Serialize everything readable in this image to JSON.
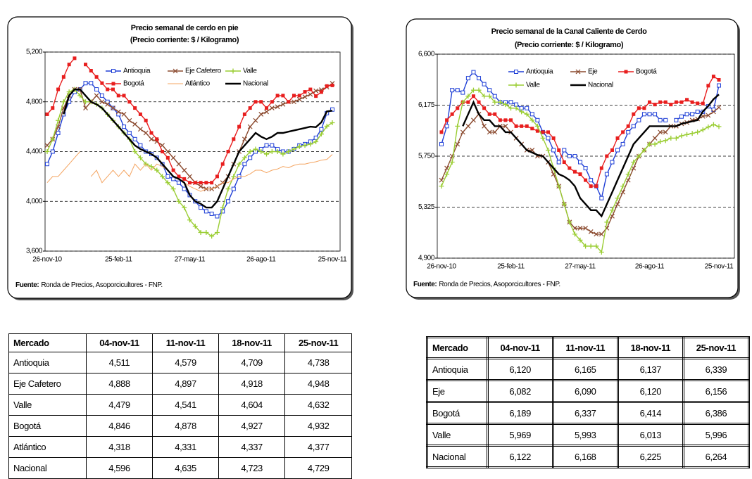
{
  "chart_data": [
    {
      "type": "line",
      "title": "Precio semanal de cerdo en pie",
      "subtitle": "(Precio corriente: $ / Kilogramo)",
      "categories": [
        "26-nov-10",
        null,
        null,
        null,
        null,
        null,
        null,
        null,
        null,
        null,
        null,
        null,
        null,
        "25-feb-11",
        null,
        null,
        null,
        null,
        null,
        null,
        null,
        null,
        null,
        null,
        null,
        null,
        "27-may-11",
        null,
        null,
        null,
        null,
        null,
        null,
        null,
        null,
        null,
        null,
        null,
        null,
        "26-ago-11",
        null,
        null,
        null,
        null,
        null,
        null,
        null,
        null,
        null,
        null,
        null,
        null,
        "25-nov-11"
      ],
      "series": [
        {
          "name": "Antioquia",
          "color": "#1f3fd6",
          "marker": "square-open",
          "values": [
            4300,
            4400,
            4550,
            4700,
            4800,
            4880,
            4900,
            4950,
            4950,
            4900,
            4850,
            4800,
            4750,
            4700,
            4600,
            4550,
            4500,
            4450,
            4400,
            4380,
            4350,
            4300,
            4200,
            4180,
            4150,
            4100,
            4050,
            4000,
            3950,
            3920,
            3900,
            3880,
            3920,
            4000,
            4100,
            4200,
            4300,
            4350,
            4400,
            4420,
            4450,
            4450,
            4420,
            4400,
            4400,
            4420,
            4450,
            4460,
            4480,
            4511,
            4579,
            4709,
            4738
          ]
        },
        {
          "name": "Eje Cafetero",
          "color": "#8b4a2f",
          "marker": "x",
          "values": [
            4450,
            4500,
            4600,
            4750,
            4850,
            4900,
            4900,
            4750,
            4800,
            4850,
            4800,
            4780,
            4750,
            4720,
            4700,
            4650,
            4620,
            4580,
            4550,
            4500,
            4480,
            4450,
            4400,
            4350,
            4300,
            4250,
            4200,
            4150,
            4120,
            4100,
            4100,
            4120,
            4150,
            4200,
            4300,
            4400,
            4500,
            4600,
            4650,
            4700,
            4720,
            4750,
            4760,
            4780,
            4800,
            4800,
            4820,
            4840,
            4860,
            4888,
            4897,
            4918,
            4948
          ]
        },
        {
          "name": "Valle",
          "color": "#9acd32",
          "marker": "plus",
          "values": [
            4400,
            4500,
            4650,
            4800,
            4880,
            4900,
            4850,
            4800,
            4800,
            4780,
            4750,
            4700,
            4650,
            4600,
            4550,
            4500,
            4400,
            4350,
            4300,
            4280,
            4250,
            4200,
            4150,
            4100,
            4000,
            3950,
            3850,
            3800,
            3750,
            3750,
            3720,
            3750,
            3950,
            4100,
            4200,
            4300,
            4350,
            4400,
            4420,
            4400,
            4380,
            4400,
            4400,
            4380,
            4400,
            4420,
            4440,
            4450,
            4460,
            4479,
            4541,
            4604,
            4632
          ]
        },
        {
          "name": "Bogotá",
          "color": "#e81e1e",
          "marker": "square",
          "values": [
            4700,
            4750,
            4900,
            5000,
            5100,
            5150,
            null,
            5100,
            5050,
            5000,
            4950,
            4900,
            4900,
            4850,
            4850,
            4800,
            4750,
            4700,
            4650,
            4550,
            4500,
            4400,
            4350,
            4250,
            4200,
            4180,
            4150,
            4150,
            4150,
            4150,
            4150,
            4200,
            4300,
            4400,
            4500,
            4600,
            4700,
            4750,
            4800,
            4800,
            4750,
            4800,
            4850,
            4850,
            4800,
            4850,
            4850,
            4880,
            4900,
            4846,
            4878,
            4927,
            4932
          ]
        },
        {
          "name": "Atlántico",
          "color": "#f4a460",
          "marker": "none",
          "values": [
            4150,
            4200,
            4200,
            4250,
            4300,
            4350,
            4400,
            null,
            4200,
            4250,
            4150,
            4200,
            4250,
            4200,
            4250,
            4200,
            4300,
            4250,
            4300,
            4250,
            4300,
            4280,
            4250,
            4200,
            4180,
            4150,
            4120,
            4100,
            4080,
            4100,
            4100,
            4120,
            4150,
            4150,
            4180,
            4200,
            4200,
            4220,
            4250,
            4250,
            4230,
            4250,
            4260,
            4280,
            4270,
            4290,
            4300,
            4300,
            4310,
            4318,
            4331,
            4337,
            4377
          ]
        },
        {
          "name": "Nacional",
          "color": "#000000",
          "marker": "none",
          "values": [
            null,
            null,
            null,
            4700,
            4850,
            4900,
            4900,
            4850,
            4800,
            4780,
            4750,
            4700,
            4650,
            4600,
            4550,
            4500,
            4450,
            4420,
            4400,
            4380,
            4350,
            4300,
            4250,
            4200,
            4180,
            4150,
            4050,
            4000,
            3980,
            3950,
            3950,
            4000,
            4100,
            4200,
            4300,
            4400,
            4450,
            4500,
            4550,
            4520,
            4500,
            4520,
            4550,
            4550,
            4560,
            4570,
            4580,
            4590,
            4600,
            4596,
            4635,
            4723,
            4729
          ]
        }
      ],
      "ylim": [
        3600,
        5200
      ],
      "yticks": [
        {
          "value": 3600,
          "label": "3,600"
        },
        {
          "value": 4000,
          "label": "4,000"
        },
        {
          "value": 4400,
          "label": "4,400"
        },
        {
          "value": 4800,
          "label": "4,800"
        },
        {
          "value": 5200,
          "label": "5,200"
        }
      ],
      "grid": true,
      "legend": "top",
      "source_label": "Fuente:",
      "source": "Ronda de Precios, Asoporcicultores  - FNP."
    },
    {
      "type": "line",
      "title": "Precio semanal de la Canal Caliente de Cerdo",
      "subtitle": "(Precio corriente: $ / Kilogramo)",
      "categories": [
        "26-nov-10",
        null,
        null,
        null,
        null,
        null,
        null,
        null,
        null,
        null,
        null,
        null,
        null,
        "25-feb-11",
        null,
        null,
        null,
        null,
        null,
        null,
        null,
        null,
        null,
        null,
        null,
        null,
        "27-may-11",
        null,
        null,
        null,
        null,
        null,
        null,
        null,
        null,
        null,
        null,
        null,
        null,
        "26-ago-11",
        null,
        null,
        null,
        null,
        null,
        null,
        null,
        null,
        null,
        null,
        null,
        null,
        "25-nov-11"
      ],
      "series": [
        {
          "name": "Antioquia",
          "color": "#1f3fd6",
          "marker": "square-open",
          "values": [
            5850,
            6000,
            6300,
            6300,
            6280,
            6400,
            6450,
            6400,
            6350,
            6300,
            6250,
            6200,
            6200,
            6200,
            6180,
            6150,
            6150,
            6100,
            6050,
            5950,
            5900,
            5800,
            5700,
            5800,
            5750,
            5750,
            5700,
            5650,
            5550,
            5500,
            5400,
            5600,
            5700,
            5800,
            5850,
            5950,
            6000,
            6050,
            6100,
            6100,
            6100,
            6050,
            6050,
            null,
            6050,
            6080,
            6100,
            6100,
            6120,
            6120,
            6165,
            6137,
            6339
          ]
        },
        {
          "name": "Eje",
          "color": "#8b4a2f",
          "marker": "x",
          "values": [
            5550,
            5650,
            5750,
            5850,
            5950,
            6000,
            6050,
            6100,
            6000,
            5950,
            5950,
            6000,
            6000,
            5950,
            5900,
            5850,
            5800,
            5800,
            5750,
            5750,
            5700,
            5600,
            5500,
            5350,
            5200,
            5150,
            5150,
            5150,
            5120,
            5100,
            5100,
            5150,
            5250,
            5350,
            5450,
            5550,
            5650,
            5750,
            5800,
            5850,
            5900,
            5950,
            5950,
            6000,
            6000,
            6020,
            6030,
            6050,
            6060,
            6082,
            6090,
            6120,
            6156
          ]
        },
        {
          "name": "Bogotá",
          "color": "#e81e1e",
          "marker": "square",
          "values": [
            5950,
            6050,
            6100,
            6150,
            6200,
            6200,
            6250,
            6200,
            6150,
            6100,
            6100,
            6050,
            6050,
            6050,
            6000,
            6000,
            6000,
            5980,
            5960,
            5950,
            5950,
            5900,
            5800,
            5700,
            5650,
            5620,
            5600,
            5550,
            5500,
            5500,
            5650,
            5750,
            5800,
            5900,
            5950,
            6000,
            6100,
            6150,
            6150,
            6200,
            6180,
            6200,
            6200,
            6180,
            6200,
            6200,
            6220,
            6200,
            6190,
            6189,
            6337,
            6414,
            6386
          ]
        },
        {
          "name": "Valle",
          "color": "#9acd32",
          "marker": "plus",
          "values": [
            5500,
            5600,
            5700,
            6000,
            6200,
            6250,
            6300,
            6300,
            6250,
            6250,
            6200,
            6200,
            6180,
            6150,
            6150,
            6120,
            6100,
            6050,
            6000,
            5900,
            5800,
            5650,
            5500,
            5350,
            5200,
            5100,
            5050,
            5000,
            5000,
            5000,
            4950,
            5200,
            5300,
            5400,
            5500,
            5600,
            5700,
            5750,
            5800,
            5850,
            5850,
            5870,
            5880,
            5900,
            5900,
            5920,
            5930,
            5940,
            5950,
            5969,
            5993,
            6013,
            5996
          ]
        },
        {
          "name": "Nacional",
          "color": "#000000",
          "marker": "none",
          "values": [
            null,
            null,
            null,
            null,
            6000,
            6100,
            6200,
            6100,
            6050,
            6050,
            6000,
            6000,
            5950,
            5950,
            5900,
            5850,
            5800,
            5780,
            5760,
            5750,
            5700,
            5650,
            5600,
            5580,
            5550,
            5500,
            5400,
            5350,
            5300,
            5300,
            5250,
            5350,
            5450,
            5550,
            5650,
            5750,
            5850,
            5900,
            5950,
            6000,
            6000,
            6000,
            6000,
            6000,
            6000,
            6020,
            6030,
            6040,
            6050,
            6122,
            6168,
            6225,
            6264
          ]
        }
      ],
      "ylim": [
        4900,
        6600
      ],
      "yticks": [
        {
          "value": 4900,
          "label": "4,900"
        },
        {
          "value": 5325,
          "label": "5,325"
        },
        {
          "value": 5750,
          "label": "5,750"
        },
        {
          "value": 6175,
          "label": "6,175"
        },
        {
          "value": 6600,
          "label": "6,600"
        }
      ],
      "grid": true,
      "legend": "top",
      "source_label": "Fuente:",
      "source": "Ronda de Precios, Asoporcicultores  - FNP."
    }
  ],
  "tables": [
    {
      "header": [
        "Mercado",
        "04-nov-11",
        "11-nov-11",
        "18-nov-11",
        "25-nov-11"
      ],
      "rows": [
        [
          "Antioquia",
          "4,511",
          "4,579",
          "4,709",
          "4,738"
        ],
        [
          "Eje Cafetero",
          "4,888",
          "4,897",
          "4,918",
          "4,948"
        ],
        [
          "Valle",
          "4,479",
          "4,541",
          "4,604",
          "4,632"
        ],
        [
          "Bogotá",
          "4,846",
          "4,878",
          "4,927",
          "4,932"
        ],
        [
          "Atlántico",
          "4,318",
          "4,331",
          "4,337",
          "4,377"
        ],
        [
          "Nacional",
          "4,596",
          "4,635",
          "4,723",
          "4,729"
        ]
      ]
    },
    {
      "header": [
        "Mercado",
        "04-nov-11",
        "11-nov-11",
        "18-nov-11",
        "25-nov-11"
      ],
      "rows": [
        [
          "Antioquia",
          "6,120",
          "6,165",
          "6,137",
          "6,339"
        ],
        [
          "Eje",
          "6,082",
          "6,090",
          "6,120",
          "6,156"
        ],
        [
          "Bogotá",
          "6,189",
          "6,337",
          "6,414",
          "6,386"
        ],
        [
          "Valle",
          "5,969",
          "5,993",
          "6,013",
          "5,996"
        ],
        [
          "Nacional",
          "6,122",
          "6,168",
          "6,225",
          "6,264"
        ]
      ]
    }
  ]
}
